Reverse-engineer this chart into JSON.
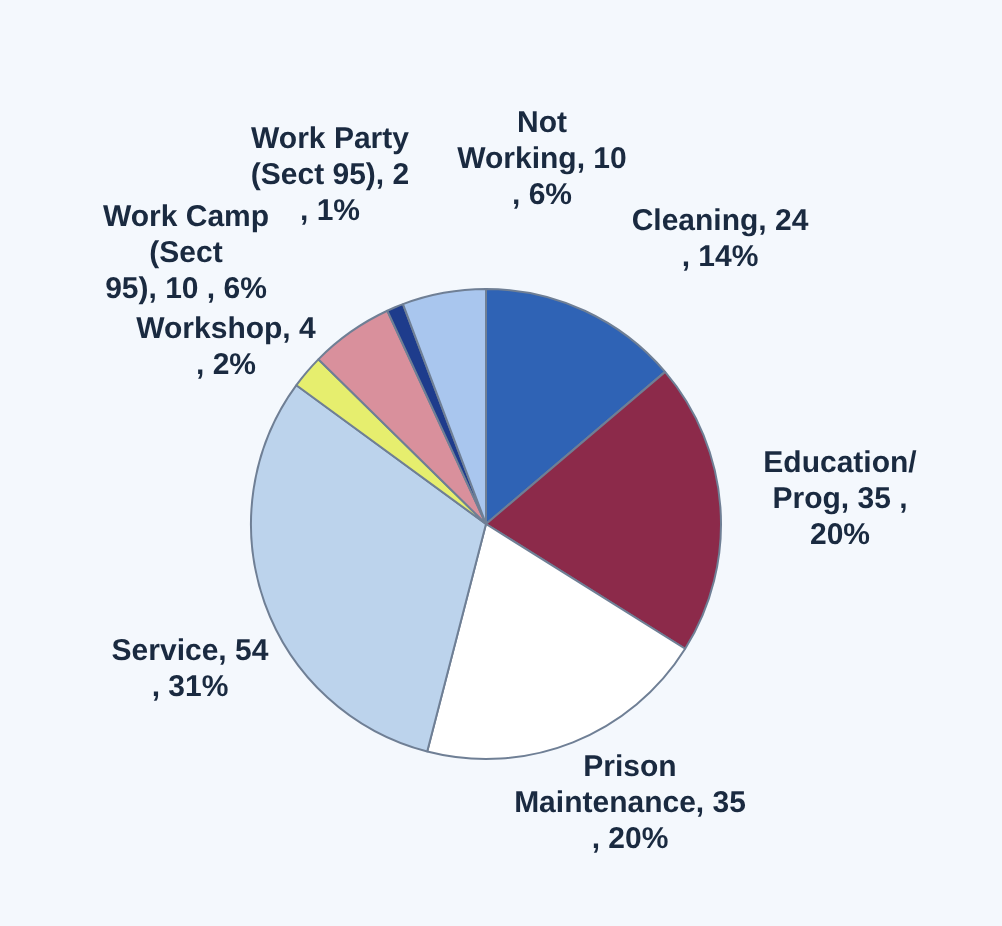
{
  "chart_data": {
    "type": "pie",
    "categories": [
      "Cleaning",
      "Education/ Prog",
      "Prison Maintenance",
      "Service",
      "Workshop",
      "Work Camp (Sect 95)",
      "Work Party (Sect 95)",
      "Not Working"
    ],
    "values": [
      24,
      35,
      35,
      54,
      4,
      10,
      2,
      10
    ],
    "colors": [
      "#2f63b5",
      "#8c2a4a",
      "#ffffff",
      "#bcd3ec",
      "#e6ee6e",
      "#d9909c",
      "#1e3c8c",
      "#a9c6ee"
    ],
    "value_labels": [
      "24 , 14%",
      "35 , 20%",
      "35 , 20%",
      "54 , 31%",
      "4 , 2%",
      "10 , 6%",
      "2 , 1%",
      "10 , 6%"
    ],
    "legend": false
  }
}
